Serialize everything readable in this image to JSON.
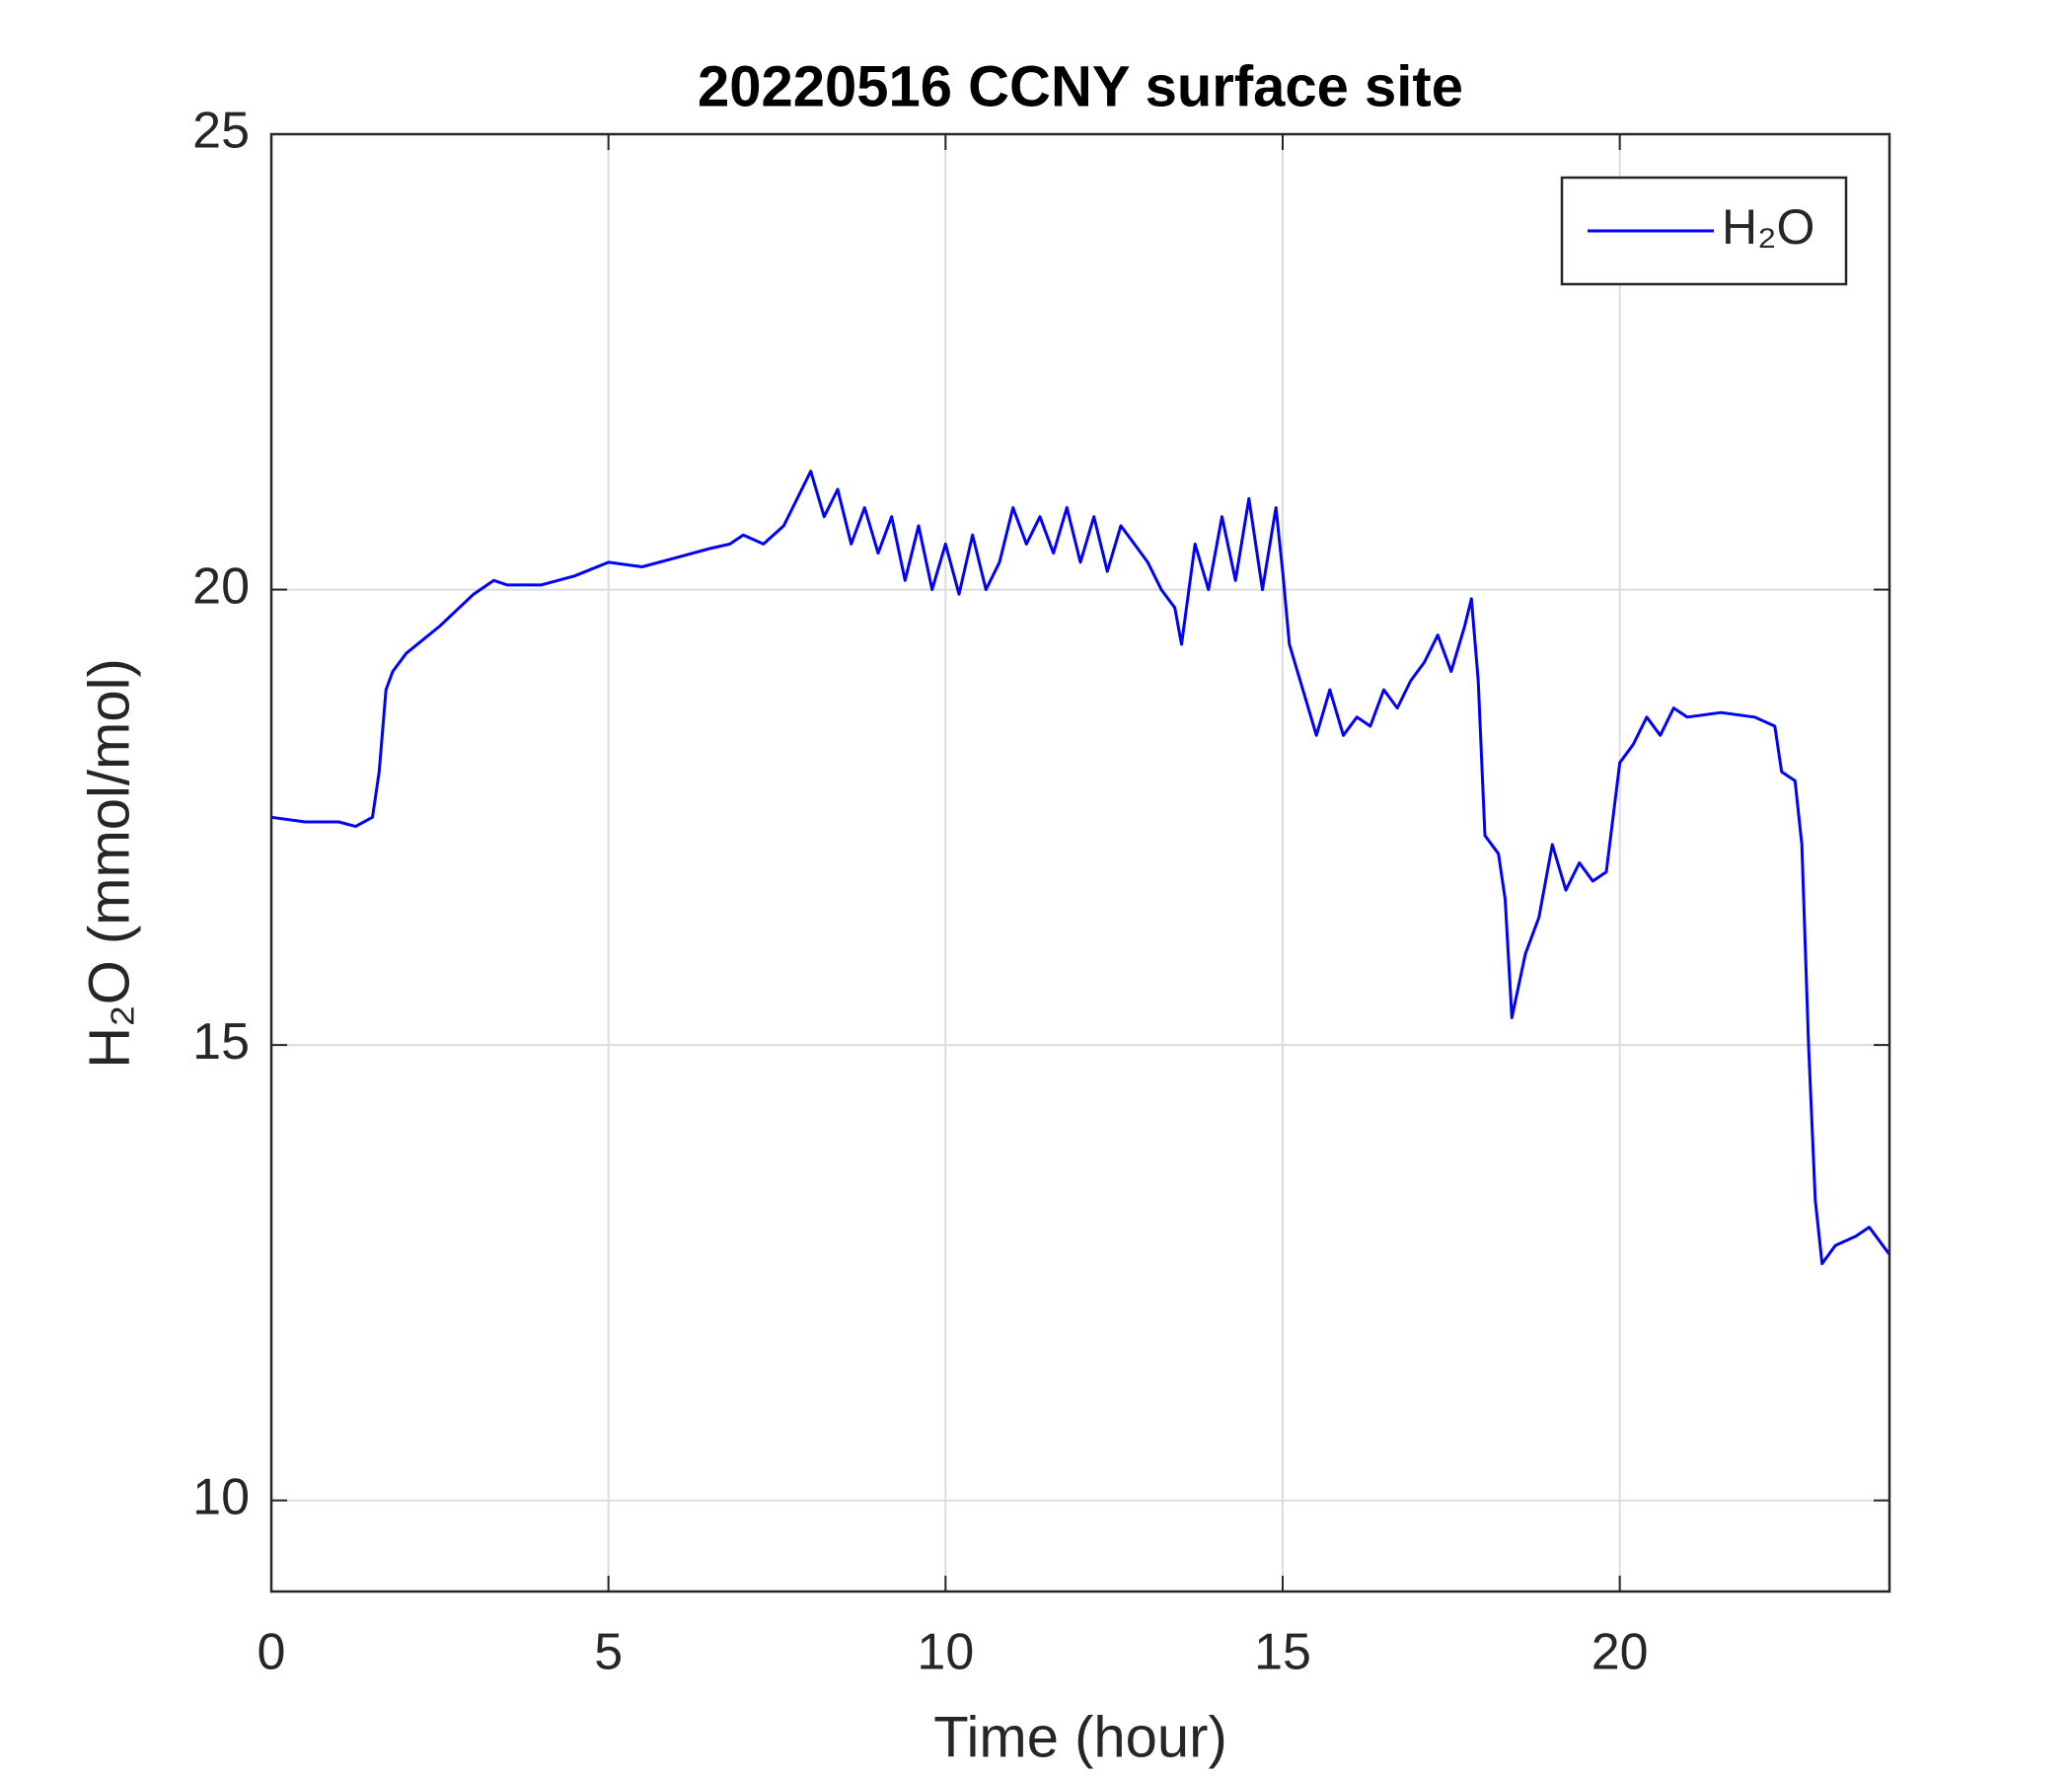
{
  "chart_data": {
    "type": "line",
    "title": "20220516 CCNY surface site",
    "xlabel": "Time (hour)",
    "ylabel": "H₂O (mmol/mol)",
    "xlim": [
      0,
      24
    ],
    "ylim": [
      9,
      25
    ],
    "xticks": [
      0,
      5,
      10,
      15,
      20
    ],
    "yticks": [
      10,
      15,
      20,
      25
    ],
    "grid": true,
    "legend": "northeast",
    "x": [
      0,
      0.5,
      1.0,
      1.25,
      1.5,
      1.6,
      1.7,
      1.8,
      2.0,
      2.5,
      3.0,
      3.3,
      3.5,
      4.0,
      4.5,
      5.0,
      5.5,
      6.0,
      6.5,
      6.8,
      7.0,
      7.3,
      7.6,
      7.8,
      8.0,
      8.2,
      8.4,
      8.6,
      8.8,
      9.0,
      9.2,
      9.4,
      9.6,
      9.8,
      10.0,
      10.2,
      10.4,
      10.6,
      10.8,
      11.0,
      11.2,
      11.4,
      11.6,
      11.8,
      12.0,
      12.2,
      12.4,
      12.6,
      12.8,
      13.0,
      13.2,
      13.4,
      13.5,
      13.7,
      13.9,
      14.1,
      14.3,
      14.5,
      14.7,
      14.9,
      15.0,
      15.1,
      15.3,
      15.5,
      15.7,
      15.9,
      16.1,
      16.3,
      16.5,
      16.7,
      16.9,
      17.1,
      17.3,
      17.5,
      17.7,
      17.8,
      17.9,
      18.0,
      18.2,
      18.3,
      18.4,
      18.6,
      18.8,
      19.0,
      19.2,
      19.4,
      19.6,
      19.8,
      20.0,
      20.2,
      20.4,
      20.6,
      20.8,
      21.0,
      21.5,
      22.0,
      22.3,
      22.4,
      22.6,
      22.7,
      22.8,
      22.9,
      23.0,
      23.2,
      23.5,
      23.7,
      24.0
    ],
    "series": [
      {
        "name": "H₂O",
        "color": "#0000ff",
        "values": [
          17.5,
          17.45,
          17.45,
          17.4,
          17.5,
          18.0,
          18.9,
          19.1,
          19.3,
          19.6,
          19.95,
          20.1,
          20.05,
          20.05,
          20.15,
          20.3,
          20.25,
          20.35,
          20.45,
          20.5,
          20.6,
          20.5,
          20.7,
          21.0,
          21.3,
          20.8,
          21.1,
          20.5,
          20.9,
          20.4,
          20.8,
          20.1,
          20.7,
          20.0,
          20.5,
          19.95,
          20.6,
          20.0,
          20.3,
          20.9,
          20.5,
          20.8,
          20.4,
          20.9,
          20.3,
          20.8,
          20.2,
          20.7,
          20.5,
          20.3,
          20.0,
          19.8,
          19.4,
          20.5,
          20.0,
          20.8,
          20.1,
          21.0,
          20.0,
          20.9,
          20.2,
          19.4,
          18.9,
          18.4,
          18.9,
          18.4,
          18.6,
          18.5,
          18.9,
          18.7,
          19.0,
          19.2,
          19.5,
          19.1,
          19.6,
          19.9,
          19.0,
          17.3,
          17.1,
          16.6,
          15.3,
          16.0,
          16.4,
          17.2,
          16.7,
          17.0,
          16.8,
          16.9,
          18.1,
          18.3,
          18.6,
          18.4,
          18.7,
          18.6,
          18.65,
          18.6,
          18.5,
          18.0,
          17.9,
          17.2,
          15.0,
          13.3,
          12.6,
          12.8,
          12.9,
          13.0,
          12.7
        ]
      }
    ]
  }
}
